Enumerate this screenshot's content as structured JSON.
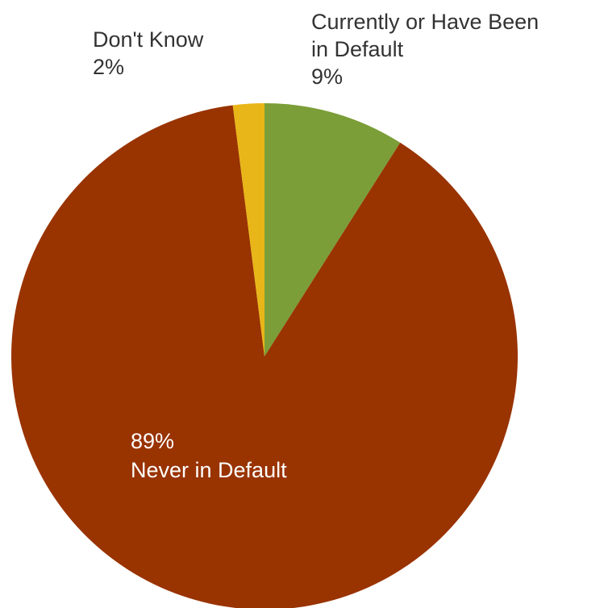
{
  "chart_data": {
    "type": "pie",
    "title": "",
    "start_angle_deg": 0,
    "direction": "clockwise",
    "slices": [
      {
        "label_lines": [
          "Currently or Have Been",
          "in Default"
        ],
        "value": 9,
        "value_label": "9%",
        "color": "#7b9e38",
        "label_color": "#333333",
        "label_position": "outside-top-right",
        "label_order": "name-first"
      },
      {
        "label_lines": [
          "Never in Default"
        ],
        "value": 89,
        "value_label": "89%",
        "color": "#993300",
        "label_color": "#ffffff",
        "label_position": "inside-lower-left",
        "label_order": "value-first"
      },
      {
        "label_lines": [
          "Don't Know"
        ],
        "value": 2,
        "value_label": "2%",
        "color": "#e8b618",
        "label_color": "#333333",
        "label_position": "outside-top-left",
        "label_order": "name-first"
      }
    ]
  }
}
